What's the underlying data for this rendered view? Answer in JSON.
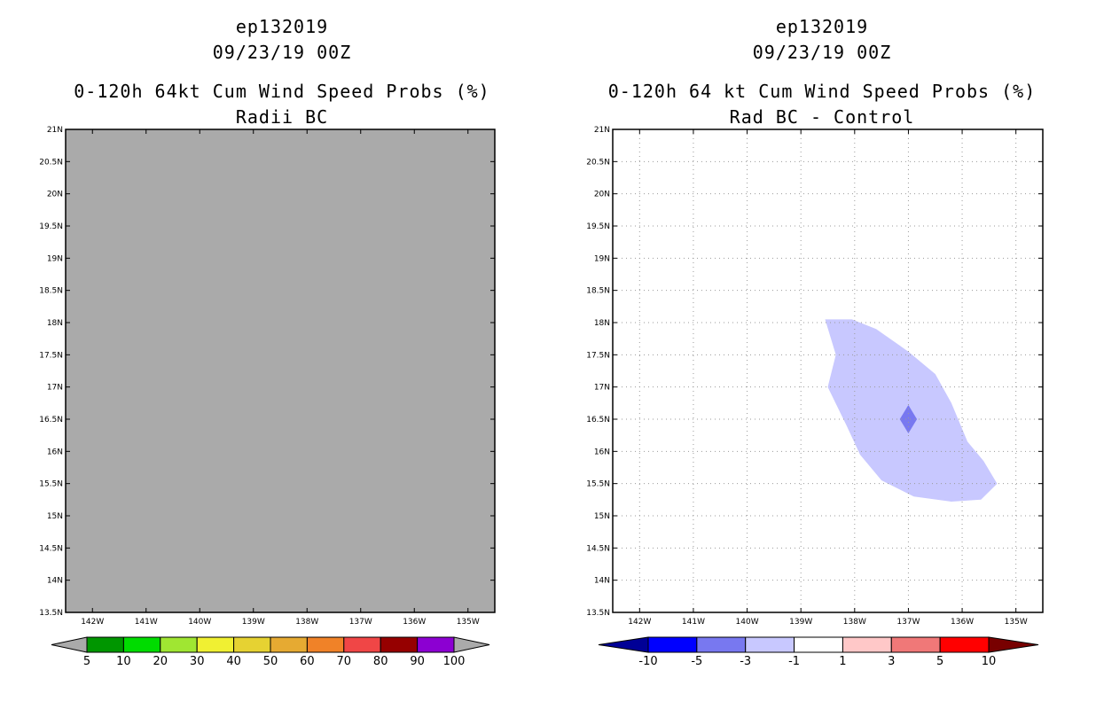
{
  "chart_data": [
    {
      "type": "heatmap",
      "title_lines": [
        "ep132019",
        "09/23/19 00Z",
        "0-120h 64kt Cum Wind Speed Probs (%)",
        "Radii BC"
      ],
      "x_ticks": [
        "142W",
        "141W",
        "140W",
        "139W",
        "138W",
        "137W",
        "136W",
        "135W"
      ],
      "y_ticks": [
        "21N",
        "20.5N",
        "20N",
        "19.5N",
        "19N",
        "18.5N",
        "18N",
        "17.5N",
        "17N",
        "16.5N",
        "16N",
        "15.5N",
        "15N",
        "14.5N",
        "14N",
        "13.5N"
      ],
      "xlim": [
        -142.5,
        -134.5
      ],
      "ylim": [
        13.5,
        21
      ],
      "grid": false,
      "field_color": "#aaaaaa",
      "fields": [
        {
          "label": "all values below 5%",
          "points": [
            [
              -142.5,
              13.5
            ],
            [
              -134.5,
              13.5
            ],
            [
              -134.5,
              21
            ],
            [
              -142.5,
              21
            ]
          ]
        }
      ],
      "colorbar": {
        "labels": [
          "5",
          "10",
          "20",
          "30",
          "40",
          "50",
          "60",
          "70",
          "80",
          "90",
          "100"
        ],
        "colors": [
          "#009600",
          "#00dc00",
          "#a0e632",
          "#f0f032",
          "#e6d232",
          "#e6aa32",
          "#f08228",
          "#f04646",
          "#960000",
          "#8c00d2"
        ],
        "under_color": "#aaaaaa",
        "over_color": "#aaaaaa"
      }
    },
    {
      "type": "heatmap",
      "title_lines": [
        "ep132019",
        "09/23/19 00Z",
        "0-120h 64 kt Cum Wind Speed Probs (%)",
        "Rad BC - Control"
      ],
      "x_ticks": [
        "142W",
        "141W",
        "140W",
        "139W",
        "138W",
        "137W",
        "136W",
        "135W"
      ],
      "y_ticks": [
        "21N",
        "20.5N",
        "20N",
        "19.5N",
        "19N",
        "18.5N",
        "18N",
        "17.5N",
        "17N",
        "16.5N",
        "16N",
        "15.5N",
        "15N",
        "14.5N",
        "14N",
        "13.5N"
      ],
      "xlim": [
        -142.5,
        -134.5
      ],
      "ylim": [
        13.5,
        21
      ],
      "grid": true,
      "fields": [
        {
          "label": "-3 to -1",
          "color": "#c8c8ff",
          "points": [
            [
              -138.55,
              18.05
            ],
            [
              -138.05,
              18.05
            ],
            [
              -137.6,
              17.9
            ],
            [
              -137.0,
              17.55
            ],
            [
              -136.5,
              17.2
            ],
            [
              -136.2,
              16.75
            ],
            [
              -135.9,
              16.15
            ],
            [
              -135.6,
              15.85
            ],
            [
              -135.35,
              15.5
            ],
            [
              -135.65,
              15.25
            ],
            [
              -136.2,
              15.22
            ],
            [
              -136.9,
              15.3
            ],
            [
              -137.5,
              15.55
            ],
            [
              -137.9,
              15.95
            ],
            [
              -138.15,
              16.4
            ],
            [
              -138.5,
              17.0
            ],
            [
              -138.35,
              17.5
            ]
          ]
        },
        {
          "label": "-5 to -3",
          "color": "#7878f0",
          "points": [
            [
              -137.0,
              16.72
            ],
            [
              -136.84,
              16.5
            ],
            [
              -137.0,
              16.28
            ],
            [
              -137.16,
              16.5
            ]
          ]
        }
      ],
      "colorbar": {
        "labels": [
          "-10",
          "-5",
          "-3",
          "-1",
          "1",
          "3",
          "5",
          "10"
        ],
        "colors": [
          "#0000ff",
          "#7878f0",
          "#c8c8ff",
          "#ffffff",
          "#ffc8c8",
          "#f07878",
          "#ff0000"
        ],
        "under_color": "#000096",
        "over_color": "#780000"
      }
    }
  ]
}
